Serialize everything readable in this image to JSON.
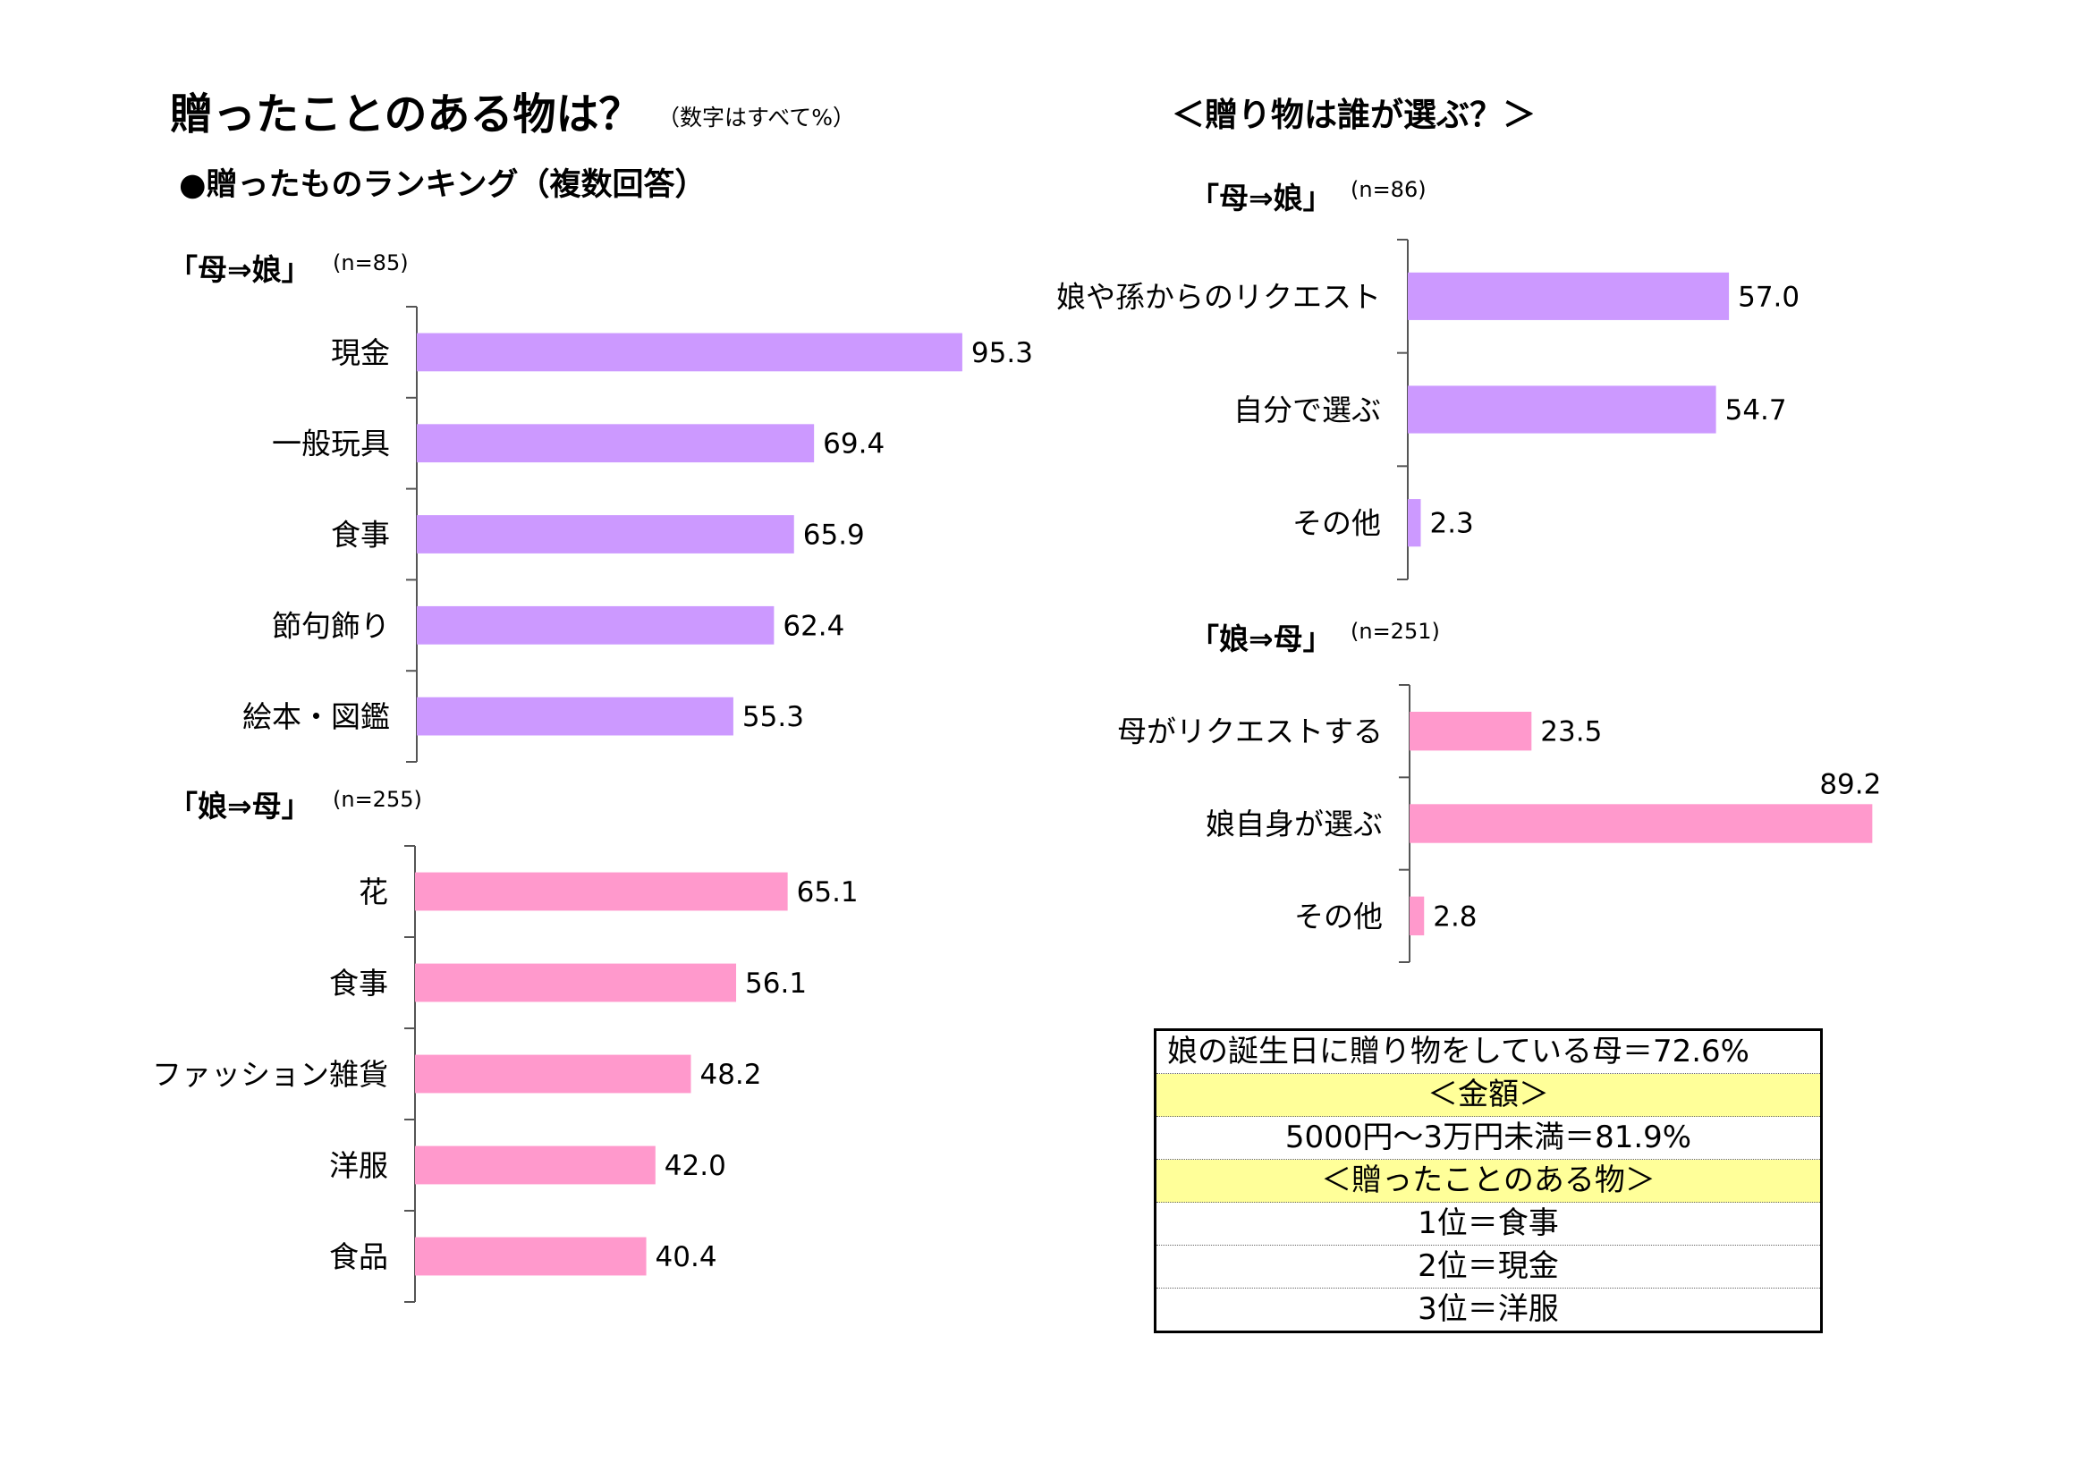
{
  "header": {
    "main_title": "贈ったことのある物は？",
    "note": "（数字はすべて%）",
    "ranking_title": "●贈ったものランキング（複数回答）",
    "right_title": "＜贈り物は誰が選ぶ？＞"
  },
  "colors": {
    "purple": "#cc99ff",
    "pink": "#ff99cc",
    "highlight": "#ffff99"
  },
  "chart_data": [
    {
      "type": "bar",
      "orientation": "horizontal",
      "title": "「母⇒娘」",
      "n": "(n=85)",
      "categories": [
        "現金",
        "一般玩具",
        "食事",
        "節句飾り",
        "絵本・図鑑"
      ],
      "values": [
        95.3,
        69.4,
        65.9,
        62.4,
        55.3
      ],
      "value_labels": [
        "95.3",
        "69.4",
        "65.9",
        "62.4",
        "55.3"
      ],
      "color": "#cc99ff",
      "xlim": [
        0,
        100
      ]
    },
    {
      "type": "bar",
      "orientation": "horizontal",
      "title": "「娘⇒母」",
      "n": "(n=255)",
      "categories": [
        "花",
        "食事",
        "ファッション雑貨",
        "洋服",
        "食品"
      ],
      "values": [
        65.1,
        56.1,
        48.2,
        42.0,
        40.4
      ],
      "value_labels": [
        "65.1",
        "56.1",
        "48.2",
        "42.0",
        "40.4"
      ],
      "color": "#ff99cc",
      "xlim": [
        0,
        100
      ]
    },
    {
      "type": "bar",
      "orientation": "horizontal",
      "title": "「母⇒娘」",
      "n": "(n=86)",
      "categories": [
        "娘や孫からのリクエスト",
        "自分で選ぶ",
        "その他"
      ],
      "values": [
        57.0,
        54.7,
        2.3
      ],
      "value_labels": [
        "57.0",
        "54.7",
        "2.3"
      ],
      "color": "#cc99ff",
      "xlim": [
        0,
        100
      ]
    },
    {
      "type": "bar",
      "orientation": "horizontal",
      "title": "「娘⇒母」",
      "n": "(n=251)",
      "categories": [
        "母がリクエストする",
        "娘自身が選ぶ",
        "その他"
      ],
      "values": [
        23.5,
        89.2,
        2.8
      ],
      "value_labels": [
        "23.5",
        "89.2",
        "2.8"
      ],
      "color": "#ff99cc",
      "xlim": [
        0,
        100
      ]
    }
  ],
  "summary": {
    "rows": [
      "娘の誕生日に贈り物をしている母＝72.6%",
      "＜金額＞",
      "5000円～3万円未満＝81.9%",
      "＜贈ったことのある物＞",
      "1位＝食事",
      "2位＝現金",
      "3位＝洋服"
    ]
  }
}
